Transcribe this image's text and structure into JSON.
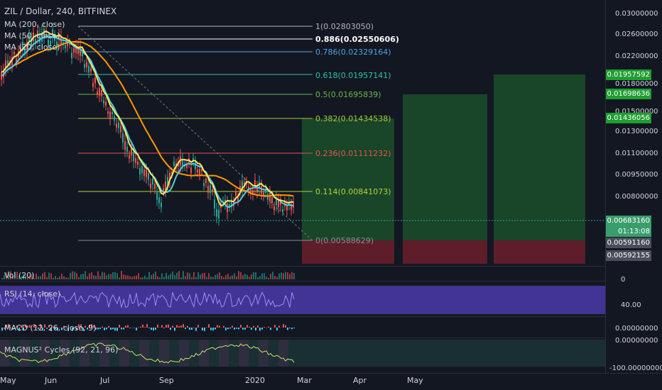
{
  "header": {
    "title": "ZIL / Dollar, 240, BITFINEX",
    "ma200": "MA (200, close)",
    "ma50": "MA (50, close)",
    "ma20": "MA (20, close)"
  },
  "fib_levels": [
    {
      "label": "1(0.02803050)",
      "color": "#b2b5be"
    },
    {
      "label": "0.886(0.02550606)",
      "color": "#ffffff"
    },
    {
      "label": "0.786(0.02329164)",
      "color": "#4fa3e0"
    },
    {
      "label": "0.618(0.01957141)",
      "color": "#26c6a9"
    },
    {
      "label": "0.5(0.01695839)",
      "color": "#66bb4a"
    },
    {
      "label": "0.382(0.01434538)",
      "color": "#a7c738"
    },
    {
      "label": "0.236(0.01111232)",
      "color": "#e0584b"
    },
    {
      "label": "0.114(0.00841073)",
      "color": "#b5d336"
    },
    {
      "label": "0(0.00588629)",
      "color": "#8a8e99"
    }
  ],
  "price_axis": [
    "0.03000000",
    "0.02600000",
    "0.02200000",
    "0.01800000",
    "0.01500000",
    "0.01300000",
    "0.01100000",
    "0.00950000",
    "0.00800000"
  ],
  "price_badges": [
    {
      "text": "0.01957592",
      "color": "#1f9e31"
    },
    {
      "text": "0.01698636",
      "color": "#1f9e31"
    },
    {
      "text": "0.01436056",
      "color": "#1f9e31"
    },
    {
      "text": "0.00683160",
      "color": "#3a9e6c"
    },
    {
      "text": "01:13:08",
      "color": "#3a9e6c"
    },
    {
      "text": "0.00591160",
      "color": "#4a4e5a"
    },
    {
      "text": "0.00592155",
      "color": "#4a4e5a"
    }
  ],
  "indicators": {
    "vol": "Vol (20)",
    "vol_axis": "0",
    "rsi": "RSI (14, close)",
    "rsi_axis": "40.00",
    "macd": "MACD (12, 26, close, 9)",
    "macd_axis": "0.00000000",
    "magnus": "MAGNUS² Cycles (92, 21, 96)",
    "magnus_axis_top": "0.00000000",
    "magnus_axis_bottom": "-100.00000000"
  },
  "time_axis": [
    "May",
    "Jun",
    "Jul",
    "Sep",
    "2020",
    "Mar",
    "Apr",
    "May"
  ],
  "colors": {
    "background": "#131722",
    "candle_up": "#26a69a",
    "candle_down": "#ef5350",
    "ma200": "#2196f3",
    "ma50": "#ff9800",
    "ma20": "#4dd0e1",
    "rsi_fill": "#4a3aa8",
    "target_zone": "#1b4d2a",
    "stop_zone": "#6b1f2a"
  }
}
